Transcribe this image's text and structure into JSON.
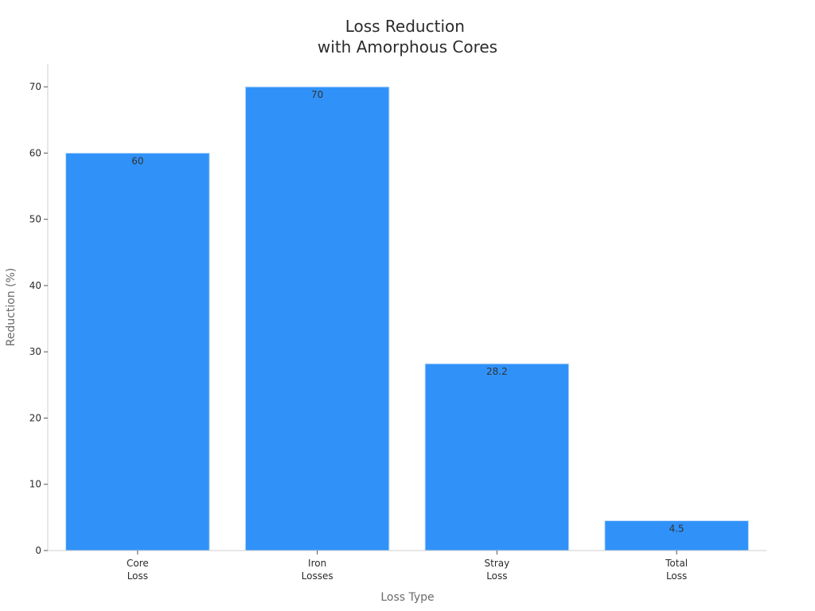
{
  "chart_data": {
    "type": "bar",
    "title": [
      "Loss Reduction",
      "with Amorphous Cores"
    ],
    "xlabel": "Loss Type",
    "ylabel": "Reduction (%)",
    "categories": [
      [
        "Core",
        "Loss"
      ],
      [
        "Iron",
        "Losses"
      ],
      [
        "Stray",
        "Loss"
      ],
      [
        "Total",
        "Loss"
      ]
    ],
    "values": [
      60,
      70,
      28.2,
      4.5
    ],
    "value_labels": [
      "60",
      "70",
      "28.2",
      "4.5"
    ],
    "ylim": [
      0,
      73.5
    ],
    "yticks": [
      0,
      10,
      20,
      30,
      40,
      50,
      60,
      70
    ],
    "grid": false,
    "bar_color": "#3092f8",
    "bar_edge_color": "#c6dffb"
  }
}
